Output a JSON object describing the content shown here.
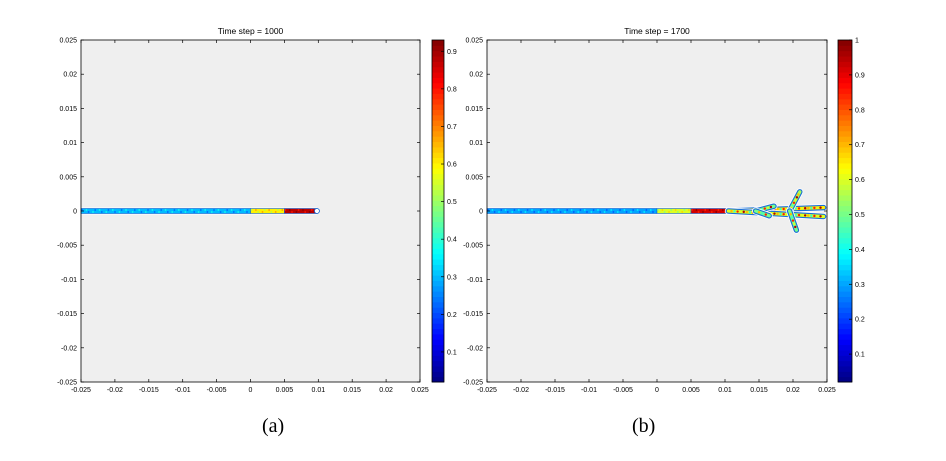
{
  "panels": [
    {
      "title": "Time step = 1000",
      "caption": "(a)"
    },
    {
      "title": "Time step = 1700",
      "caption": "(b)"
    }
  ],
  "chart_data": [
    {
      "type": "heatmap",
      "title": "Time step = 1000",
      "xlim": [
        -0.025,
        0.025
      ],
      "ylim": [
        -0.025,
        0.025
      ],
      "x_ticks": [
        "-0.025",
        "-0.02",
        "-0.015",
        "-0.01",
        "-0.005",
        "0",
        "0.005",
        "0.01",
        "0.015",
        "0.02",
        "0.025"
      ],
      "y_ticks": [
        "0.025",
        "0.02",
        "0.015",
        "0.01",
        "0.005",
        "0",
        "-0.005",
        "-0.01",
        "-0.015",
        "-0.02",
        "-0.025"
      ],
      "colorbar_ticks": [
        "0.9",
        "0.8",
        "0.7",
        "0.6",
        "0.5",
        "0.4",
        "0.3",
        "0.2",
        "0.1"
      ],
      "colorbar_range": [
        0.02,
        0.93
      ],
      "colormap": "jet",
      "background_color": "#efefef",
      "crack_segments": [
        {
          "x0": -0.025,
          "x1": 0.0,
          "y": 0,
          "value": 0.3
        },
        {
          "x0": 0.0,
          "x1": 0.005,
          "y": 0,
          "value": 0.6
        },
        {
          "x0": 0.005,
          "x1": 0.0098,
          "y": 0,
          "value": 0.88
        }
      ],
      "crack_tip": 0.0098
    },
    {
      "type": "heatmap",
      "title": "Time step = 1700",
      "xlim": [
        -0.025,
        0.025
      ],
      "ylim": [
        -0.025,
        0.025
      ],
      "x_ticks": [
        "-0.025",
        "-0.02",
        "-0.015",
        "-0.01",
        "-0.005",
        "0",
        "0.005",
        "0.01",
        "0.015",
        "0.02",
        "0.025"
      ],
      "y_ticks": [
        "0.025",
        "0.02",
        "0.015",
        "0.01",
        "0.005",
        "0",
        "-0.005",
        "-0.01",
        "-0.015",
        "-0.02",
        "-0.025"
      ],
      "colorbar_ticks": [
        "1",
        "0.9",
        "0.8",
        "0.7",
        "0.6",
        "0.5",
        "0.4",
        "0.3",
        "0.2",
        "0.1"
      ],
      "colorbar_range": [
        0.02,
        1.0
      ],
      "colormap": "jet",
      "background_color": "#efefef",
      "crack_segments": [
        {
          "x0": -0.025,
          "x1": 0.0,
          "y": 0,
          "value": 0.3
        },
        {
          "x0": 0.0,
          "x1": 0.005,
          "y": 0,
          "value": 0.6
        },
        {
          "x0": 0.005,
          "x1": 0.0105,
          "y": 0,
          "value": 0.92
        }
      ],
      "branches": [
        {
          "x0": 0.0105,
          "y0": 0,
          "x1": 0.0245,
          "y1": 0.0005,
          "value": 0.65
        },
        {
          "x0": 0.0105,
          "y0": 0,
          "x1": 0.0245,
          "y1": -0.0008,
          "value": 0.6
        },
        {
          "x0": 0.0145,
          "y0": 0,
          "x1": 0.0172,
          "y1": 0.0007,
          "value": 0.5
        },
        {
          "x0": 0.0145,
          "y0": 0,
          "x1": 0.0165,
          "y1": -0.0007,
          "value": 0.5
        },
        {
          "x0": 0.0195,
          "y0": 0,
          "x1": 0.021,
          "y1": 0.0028,
          "value": 0.55
        },
        {
          "x0": 0.0195,
          "y0": 0,
          "x1": 0.0205,
          "y1": -0.0028,
          "value": 0.5
        }
      ]
    }
  ]
}
